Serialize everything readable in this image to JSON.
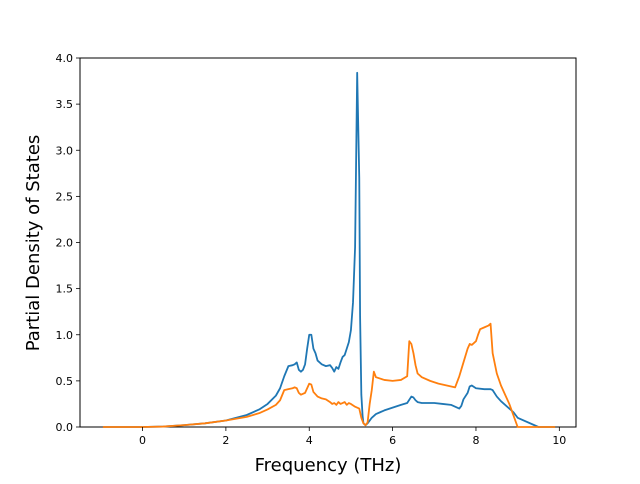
{
  "chart_data": {
    "type": "line",
    "title": "",
    "xlabel": "Frequency (THz)",
    "ylabel": "Partial Density of States",
    "xlim": [
      -1.5,
      10.4
    ],
    "ylim": [
      0.0,
      4.0
    ],
    "xticks": [
      0,
      2,
      4,
      6,
      8,
      10
    ],
    "yticks": [
      0.0,
      0.5,
      1.0,
      1.5,
      2.0,
      2.5,
      3.0,
      3.5,
      4.0
    ],
    "xtick_labels": [
      "0",
      "2",
      "4",
      "6",
      "8",
      "10"
    ],
    "ytick_labels": [
      "0.0",
      "0.5",
      "1.0",
      "1.5",
      "2.0",
      "2.5",
      "3.0",
      "3.5",
      "4.0"
    ],
    "grid": false,
    "legend": "none",
    "series": [
      {
        "color": "#1f77b4",
        "x": [
          -0.95,
          0.0,
          0.5,
          1.0,
          1.5,
          2.0,
          2.5,
          2.8,
          3.0,
          3.2,
          3.3,
          3.4,
          3.5,
          3.6,
          3.65,
          3.7,
          3.75,
          3.8,
          3.85,
          3.9,
          3.95,
          4.0,
          4.05,
          4.1,
          4.15,
          4.2,
          4.3,
          4.4,
          4.5,
          4.55,
          4.6,
          4.65,
          4.7,
          4.75,
          4.8,
          4.85,
          4.9,
          4.95,
          5.0,
          5.05,
          5.1,
          5.15,
          5.2,
          5.22,
          5.25,
          5.28,
          5.3,
          5.35,
          5.4,
          5.45,
          5.5,
          5.6,
          5.7,
          5.8,
          6.0,
          6.2,
          6.35,
          6.45,
          6.5,
          6.55,
          6.6,
          6.7,
          7.0,
          7.2,
          7.4,
          7.5,
          7.6,
          7.65,
          7.7,
          7.8,
          7.85,
          7.9,
          8.0,
          8.2,
          8.35,
          8.4,
          8.5,
          8.6,
          8.8,
          8.9,
          9.0,
          9.5,
          9.9
        ],
        "y": [
          0.0,
          0.0,
          0.005,
          0.02,
          0.04,
          0.07,
          0.13,
          0.19,
          0.25,
          0.34,
          0.42,
          0.55,
          0.66,
          0.67,
          0.68,
          0.7,
          0.62,
          0.6,
          0.62,
          0.68,
          0.85,
          1.0,
          1.0,
          0.85,
          0.8,
          0.72,
          0.68,
          0.66,
          0.67,
          0.64,
          0.6,
          0.65,
          0.63,
          0.7,
          0.76,
          0.78,
          0.85,
          0.92,
          1.05,
          1.35,
          1.95,
          3.84,
          2.7,
          1.2,
          0.35,
          0.12,
          0.04,
          0.02,
          0.04,
          0.07,
          0.1,
          0.14,
          0.16,
          0.18,
          0.21,
          0.24,
          0.26,
          0.33,
          0.32,
          0.29,
          0.27,
          0.26,
          0.26,
          0.25,
          0.24,
          0.22,
          0.2,
          0.23,
          0.3,
          0.37,
          0.44,
          0.45,
          0.42,
          0.41,
          0.41,
          0.4,
          0.33,
          0.28,
          0.2,
          0.16,
          0.1,
          0.0,
          0.0
        ]
      },
      {
        "color": "#ff7f0e",
        "x": [
          -0.95,
          0.0,
          0.5,
          1.0,
          1.5,
          2.0,
          2.5,
          2.8,
          3.0,
          3.2,
          3.3,
          3.4,
          3.5,
          3.6,
          3.65,
          3.7,
          3.75,
          3.8,
          3.85,
          3.9,
          3.95,
          4.0,
          4.05,
          4.1,
          4.2,
          4.3,
          4.4,
          4.5,
          4.55,
          4.6,
          4.65,
          4.7,
          4.75,
          4.8,
          4.85,
          4.9,
          4.95,
          5.0,
          5.1,
          5.2,
          5.25,
          5.3,
          5.35,
          5.4,
          5.45,
          5.5,
          5.55,
          5.6,
          5.8,
          6.0,
          6.2,
          6.35,
          6.4,
          6.45,
          6.5,
          6.55,
          6.6,
          6.7,
          6.9,
          7.1,
          7.3,
          7.5,
          7.6,
          7.7,
          7.8,
          7.85,
          7.9,
          8.0,
          8.05,
          8.1,
          8.2,
          8.3,
          8.35,
          8.4,
          8.5,
          8.6,
          8.7,
          8.8,
          9.0,
          9.5,
          9.9
        ],
        "y": [
          0.0,
          0.0,
          0.005,
          0.02,
          0.04,
          0.07,
          0.11,
          0.15,
          0.19,
          0.24,
          0.29,
          0.4,
          0.41,
          0.42,
          0.43,
          0.42,
          0.37,
          0.35,
          0.36,
          0.37,
          0.42,
          0.47,
          0.46,
          0.38,
          0.33,
          0.31,
          0.3,
          0.27,
          0.25,
          0.26,
          0.24,
          0.27,
          0.25,
          0.26,
          0.27,
          0.24,
          0.26,
          0.25,
          0.22,
          0.2,
          0.1,
          0.04,
          0.02,
          0.05,
          0.25,
          0.4,
          0.6,
          0.54,
          0.51,
          0.5,
          0.51,
          0.55,
          0.93,
          0.9,
          0.8,
          0.67,
          0.58,
          0.54,
          0.5,
          0.47,
          0.45,
          0.43,
          0.55,
          0.7,
          0.85,
          0.9,
          0.89,
          0.93,
          1.0,
          1.06,
          1.08,
          1.1,
          1.12,
          0.8,
          0.58,
          0.45,
          0.35,
          0.25,
          0.0,
          0.0,
          0.0
        ]
      }
    ]
  }
}
